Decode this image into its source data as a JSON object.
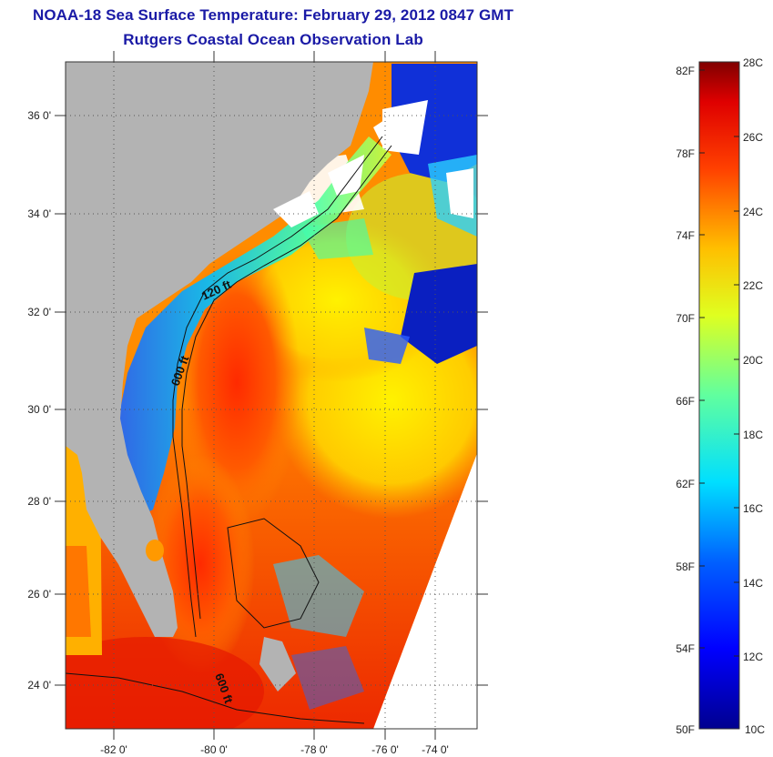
{
  "title": {
    "line1": "NOAA-18 Sea Surface Temperature:  February 29, 2012 0847 GMT",
    "line2": "Rutgers Coastal Ocean Observation Lab"
  },
  "map": {
    "lon_ticks": [
      "-82 0'",
      "-80 0'",
      "-78 0'",
      "-76 0'",
      "-74 0'"
    ],
    "lat_ticks": [
      "36 0'",
      "34 0'",
      "32 0'",
      "30 0'",
      "28 0'",
      "26 0'",
      "24 0'"
    ],
    "contour_labels": [
      "120 ft",
      "600 ft",
      "600 ft"
    ],
    "colors": {
      "land": "#b3b3b3",
      "cloud": "#ffffff",
      "warm": "#ff3b0a",
      "cool": "#1030d8"
    }
  },
  "colorbar": {
    "fahrenheit_labels": [
      "82F",
      "78F",
      "74F",
      "70F",
      "66F",
      "62F",
      "58F",
      "54F",
      "50F"
    ],
    "celsius_labels": [
      "28C",
      "26C",
      "24C",
      "22C",
      "20C",
      "18C",
      "16C",
      "14C",
      "12C",
      "10C"
    ],
    "range_celsius": [
      10,
      28
    ],
    "colormap": "jet"
  }
}
